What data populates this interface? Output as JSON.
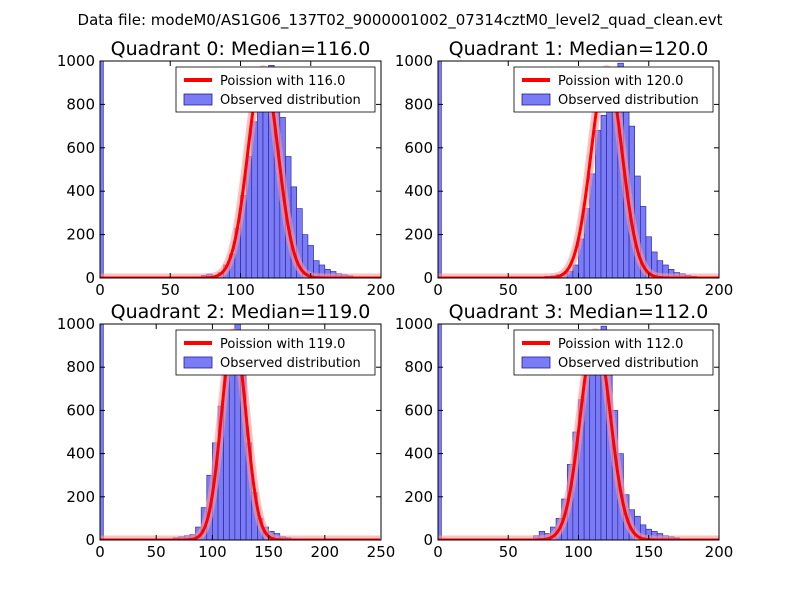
{
  "figure": {
    "suptitle": "Data file: modeM0/AS1G06_137T02_9000001002_07314cztM0_level2_quad_clean.evt"
  },
  "colors": {
    "bar_fill": "#7b7bf6",
    "bar_edge": "#1f1f9a",
    "poisson_line": "#ff0000",
    "poisson_halo": "#ff9a9a"
  },
  "chart_data": [
    {
      "type": "bar",
      "title": "Quadrant 0: Median=116.0",
      "median": 116.0,
      "xlim": [
        0,
        200
      ],
      "ylim": [
        0,
        1000
      ],
      "xticks": [
        0,
        50,
        100,
        150,
        200
      ],
      "yticks": [
        0,
        200,
        400,
        600,
        800,
        1000
      ],
      "bin_width": 4,
      "legend": [
        "Poission with 116.0",
        "Observed distribution"
      ],
      "legend_loc": "upper right",
      "zero_bin": 1000,
      "bins_start": 72,
      "counts": [
        12,
        18,
        8,
        25,
        60,
        110,
        230,
        380,
        560,
        720,
        810,
        900,
        980,
        860,
        740,
        560,
        420,
        320,
        200,
        150,
        80,
        60,
        40,
        30,
        20,
        15,
        10,
        5,
        3
      ],
      "poisson_peak": 960
    },
    {
      "type": "bar",
      "title": "Quadrant 1: Median=120.0",
      "median": 120.0,
      "xlim": [
        0,
        200
      ],
      "ylim": [
        0,
        1000
      ],
      "xticks": [
        0,
        50,
        100,
        150,
        200
      ],
      "yticks": [
        0,
        200,
        400,
        600,
        800,
        1000
      ],
      "bin_width": 4,
      "legend": [
        "Poission with 120.0",
        "Observed distribution"
      ],
      "legend_loc": "upper right",
      "zero_bin": 1000,
      "bins_start": 76,
      "counts": [
        8,
        10,
        15,
        20,
        30,
        60,
        180,
        320,
        480,
        680,
        750,
        850,
        920,
        990,
        950,
        700,
        470,
        330,
        190,
        120,
        80,
        60,
        40,
        25,
        20,
        12,
        8,
        5
      ],
      "poisson_peak": 960
    },
    {
      "type": "bar",
      "title": "Quadrant 2: Median=119.0",
      "median": 119.0,
      "xlim": [
        0,
        250
      ],
      "ylim": [
        0,
        1000
      ],
      "xticks": [
        0,
        50,
        100,
        150,
        200,
        250
      ],
      "yticks": [
        0,
        200,
        400,
        600,
        800,
        1000
      ],
      "bin_width": 5,
      "legend": [
        "Poission with 119.0",
        "Observed distribution"
      ],
      "legend_loc": "upper right",
      "zero_bin": 1000,
      "bins_start": 65,
      "counts": [
        10,
        15,
        20,
        25,
        60,
        150,
        300,
        450,
        620,
        800,
        900,
        1000,
        760,
        450,
        220,
        100,
        60,
        40,
        30,
        15,
        10,
        5,
        3
      ],
      "poisson_peak": 960
    },
    {
      "type": "bar",
      "title": "Quadrant 3: Median=112.0",
      "median": 112.0,
      "xlim": [
        0,
        200
      ],
      "ylim": [
        0,
        1000
      ],
      "xticks": [
        0,
        50,
        100,
        150,
        200
      ],
      "yticks": [
        0,
        200,
        400,
        600,
        800,
        1000
      ],
      "bin_width": 4,
      "legend": [
        "Poission with 112.0",
        "Observed distribution"
      ],
      "legend_loc": "upper right",
      "zero_bin": 1000,
      "bins_start": 68,
      "counts": [
        20,
        40,
        30,
        60,
        100,
        190,
        350,
        500,
        650,
        800,
        900,
        820,
        990,
        800,
        600,
        400,
        210,
        140,
        110,
        70,
        50,
        40,
        30,
        20,
        15,
        10
      ],
      "poisson_peak": 960
    }
  ]
}
